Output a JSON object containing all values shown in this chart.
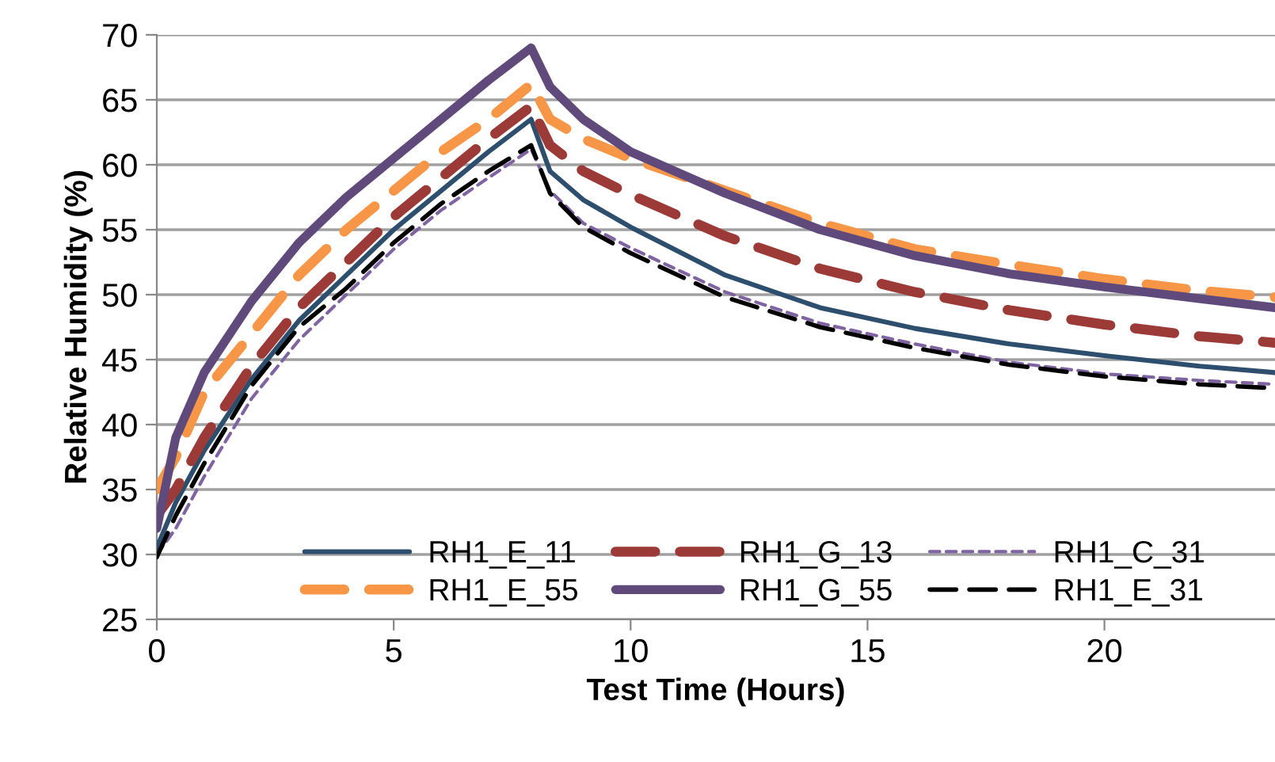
{
  "chart_data": {
    "type": "line",
    "xlabel": "Test Time (Hours)",
    "ylabel": "Relative Humidity (%)",
    "xlim": [
      0,
      23.6
    ],
    "xticks": [
      0,
      5,
      10,
      15,
      20
    ],
    "ylim": [
      25,
      70
    ],
    "yticks": [
      25,
      30,
      35,
      40,
      45,
      50,
      55,
      60,
      65,
      70
    ],
    "grid": "y",
    "legend": "bottom",
    "x": [
      0,
      0.4,
      1,
      2,
      3,
      4,
      5,
      6,
      7,
      7.9,
      8.3,
      9,
      10,
      12,
      14,
      16,
      18,
      20,
      22,
      23.6
    ],
    "series": [
      {
        "name": "RH1_E_11",
        "color": "#2e4e6e",
        "line_style": "solid",
        "values": [
          30.5,
          34,
          38,
          43.5,
          48,
          51.5,
          55,
          58,
          61,
          63.5,
          59.5,
          57.3,
          55.2,
          51.5,
          49,
          47.4,
          46.2,
          45.3,
          44.5,
          44.0
        ]
      },
      {
        "name": "RH1_G_13",
        "color": "#9b3a36",
        "line_style": "dashed",
        "values": [
          33,
          35,
          39,
          44.5,
          49,
          52.5,
          56,
          59,
          62,
          64.5,
          61.5,
          59.5,
          57.7,
          54.5,
          52,
          50.2,
          48.8,
          47.7,
          46.8,
          46.3
        ]
      },
      {
        "name": "RH1_C_31",
        "color": "#8064a2",
        "line_style": "dotted",
        "values": [
          30,
          32,
          36,
          42,
          46.5,
          50,
          53.5,
          56.5,
          59,
          61.2,
          58,
          55.5,
          53.6,
          50.2,
          47.8,
          46.2,
          44.8,
          43.9,
          43.4,
          43.1
        ]
      },
      {
        "name": "RH1_E_55",
        "color": "#f79646",
        "line_style": "dashed",
        "values": [
          35,
          37.5,
          42.5,
          47,
          51.5,
          55,
          58,
          61,
          63.5,
          66.2,
          63.5,
          62,
          60.5,
          58,
          55.5,
          53.5,
          52.3,
          51.2,
          50.3,
          49.8
        ]
      },
      {
        "name": "RH1_G_55",
        "color": "#604a7b",
        "line_style": "solid",
        "values": [
          32,
          39,
          44,
          49.5,
          54,
          57.5,
          60.5,
          63.5,
          66.5,
          69,
          66,
          63.5,
          61,
          57.8,
          55,
          53,
          51.6,
          50.6,
          49.7,
          49.0
        ]
      },
      {
        "name": "RH1_E_31",
        "color": "#000000",
        "line_style": "dashed",
        "values": [
          29.8,
          33,
          37,
          43,
          47.5,
          50.5,
          54,
          57,
          59.5,
          61.5,
          57.8,
          55.2,
          53.2,
          49.8,
          47.5,
          45.9,
          44.6,
          43.7,
          43.1,
          42.8
        ]
      }
    ]
  }
}
